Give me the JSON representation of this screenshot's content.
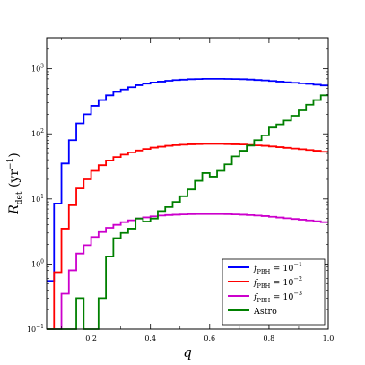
{
  "chart_data": {
    "type": "line",
    "step": true,
    "xlabel": "q",
    "ylabel": "R_det (yr^-1)",
    "xlim": [
      0.05,
      1.0
    ],
    "ylim": [
      0.1,
      3000
    ],
    "yscale": "log",
    "grid": false,
    "legend_position": "bottom-right",
    "x_ticks": [
      "0.2",
      "0.4",
      "0.6",
      "0.8",
      "1.0"
    ],
    "y_ticks": [
      {
        "base": "10",
        "exp": "−1",
        "value": 0.1
      },
      {
        "base": "10",
        "exp": "0",
        "value": 1
      },
      {
        "base": "10",
        "exp": "1",
        "value": 10
      },
      {
        "base": "10",
        "exp": "2",
        "value": 100
      },
      {
        "base": "10",
        "exp": "3",
        "value": 1000
      }
    ],
    "bin_edges": [
      0.05,
      0.075,
      0.1,
      0.125,
      0.15,
      0.175,
      0.2,
      0.225,
      0.25,
      0.275,
      0.3,
      0.325,
      0.35,
      0.375,
      0.4,
      0.425,
      0.45,
      0.475,
      0.5,
      0.525,
      0.55,
      0.575,
      0.6,
      0.625,
      0.65,
      0.675,
      0.7,
      0.725,
      0.75,
      0.775,
      0.8,
      0.825,
      0.85,
      0.875,
      0.9,
      0.925,
      0.95,
      0.975,
      1.0
    ],
    "series": [
      {
        "name": "f_PBH = 10^−1",
        "legend": {
          "f": "f",
          "sub": "PBH",
          "eq": " = 10",
          "exp": "−1"
        },
        "color": "#0000ff",
        "values": [
          0.55,
          8.5,
          35,
          80,
          145,
          200,
          270,
          330,
          390,
          440,
          480,
          520,
          560,
          590,
          615,
          635,
          655,
          670,
          680,
          690,
          695,
          700,
          700,
          700,
          698,
          695,
          690,
          682,
          672,
          662,
          650,
          635,
          622,
          610,
          598,
          585,
          570,
          555
        ]
      },
      {
        "name": "f_PBH = 10^−2",
        "legend": {
          "f": "f",
          "sub": "PBH",
          "eq": " = 10",
          "exp": "−2"
        },
        "color": "#ff0000",
        "values": [
          0.1,
          0.75,
          3.5,
          8.0,
          14.5,
          20,
          27,
          33,
          39,
          44,
          48,
          52,
          55.5,
          58.5,
          61.5,
          63.5,
          65.5,
          67,
          68,
          69,
          69.5,
          70,
          70,
          70,
          69.5,
          69,
          68.5,
          67.5,
          66.5,
          65.5,
          64,
          62.5,
          61,
          59.5,
          58,
          56.5,
          55,
          53
        ]
      },
      {
        "name": "f_PBH = 10^−3",
        "legend": {
          "f": "f",
          "sub": "PBH",
          "eq": " = 10",
          "exp": "−3"
        },
        "color": "#cc00cc",
        "values": [
          0.1,
          0.1,
          0.35,
          0.8,
          1.45,
          1.95,
          2.6,
          3.1,
          3.6,
          4.0,
          4.4,
          4.7,
          5.0,
          5.2,
          5.4,
          5.55,
          5.65,
          5.72,
          5.78,
          5.82,
          5.84,
          5.85,
          5.85,
          5.84,
          5.82,
          5.78,
          5.72,
          5.64,
          5.55,
          5.45,
          5.32,
          5.18,
          5.05,
          4.92,
          4.8,
          4.68,
          4.55,
          4.4
        ]
      },
      {
        "name": "Astro",
        "legend": {
          "f": "Astro",
          "sub": "",
          "eq": "",
          "exp": ""
        },
        "color": "#008000",
        "values": [
          0.1,
          0.1,
          0.1,
          0.1,
          0.3,
          0.1,
          0.1,
          0.3,
          1.3,
          2.5,
          3.0,
          3.5,
          5.0,
          4.5,
          5.0,
          6.5,
          7.5,
          9.0,
          11,
          14,
          19,
          25,
          22,
          27,
          34,
          45,
          55,
          66,
          80,
          95,
          125,
          140,
          160,
          190,
          230,
          280,
          330,
          390
        ]
      }
    ]
  }
}
